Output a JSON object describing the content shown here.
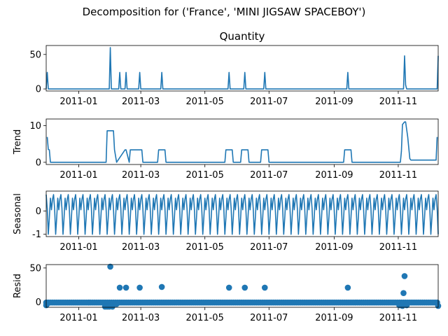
{
  "figure": {
    "suptitle": "Decomposition for ('France', 'MINI JIGSAW SPACEBOY')",
    "line_color": "#1f77b4"
  },
  "chart_data": [
    {
      "type": "line",
      "title": "Quantity",
      "ylabel": "",
      "ylim": [
        -3,
        63
      ],
      "yticks": [
        0,
        50
      ],
      "xlim": [
        "2010-12-01",
        "2011-12-09"
      ],
      "xticks": [
        "2011-01",
        "2011-03",
        "2011-05",
        "2011-07",
        "2011-09",
        "2011-11"
      ],
      "grid": false,
      "x": [
        "2010-12-01",
        "2010-12-02",
        "2010-12-03",
        "2011-01-30",
        "2011-01-31",
        "2011-02-01",
        "2011-02-08",
        "2011-02-09",
        "2011-02-10",
        "2011-02-14",
        "2011-02-15",
        "2011-02-16",
        "2011-02-27",
        "2011-02-28",
        "2011-03-01",
        "2011-03-20",
        "2011-03-21",
        "2011-03-22",
        "2011-05-23",
        "2011-05-24",
        "2011-05-25",
        "2011-06-07",
        "2011-06-08",
        "2011-06-09",
        "2011-06-26",
        "2011-06-27",
        "2011-06-28",
        "2011-09-13",
        "2011-09-14",
        "2011-09-15",
        "2011-11-06",
        "2011-11-07",
        "2011-11-08",
        "2011-11-09",
        "2011-11-10",
        "2011-12-08",
        "2011-12-09"
      ],
      "values": [
        0,
        24,
        0,
        0,
        60,
        0,
        0,
        24,
        0,
        0,
        24,
        0,
        0,
        24,
        0,
        0,
        24,
        0,
        0,
        24,
        0,
        0,
        24,
        0,
        0,
        24,
        0,
        0,
        24,
        0,
        0,
        48,
        6,
        0,
        0,
        0,
        48
      ]
    },
    {
      "type": "line",
      "title": "",
      "ylabel": "Trend",
      "ylim": [
        -0.6,
        11.8
      ],
      "yticks": [
        0,
        10
      ],
      "xlim": [
        "2010-12-01",
        "2011-12-09"
      ],
      "xticks": [
        "2011-01",
        "2011-03",
        "2011-05",
        "2011-07",
        "2011-09",
        "2011-11"
      ],
      "grid": false,
      "x": [
        "2010-12-02",
        "2010-12-03",
        "2010-12-04",
        "2010-12-05",
        "2011-01-27",
        "2011-01-28",
        "2011-02-03",
        "2011-02-04",
        "2011-02-06",
        "2011-02-14",
        "2011-02-15",
        "2011-02-18",
        "2011-02-19",
        "2011-02-24",
        "2011-03-02",
        "2011-03-03",
        "2011-03-17",
        "2011-03-18",
        "2011-03-24",
        "2011-03-25",
        "2011-05-20",
        "2011-05-21",
        "2011-05-27",
        "2011-05-28",
        "2011-06-04",
        "2011-06-05",
        "2011-06-11",
        "2011-06-12",
        "2011-06-23",
        "2011-06-24",
        "2011-06-30",
        "2011-07-01",
        "2011-09-10",
        "2011-09-11",
        "2011-09-17",
        "2011-09-18",
        "2011-11-03",
        "2011-11-04",
        "2011-11-05",
        "2011-11-07",
        "2011-11-08",
        "2011-11-10",
        "2011-11-12",
        "2011-11-13",
        "2011-12-07",
        "2011-12-08"
      ],
      "values": [
        6.9,
        3.5,
        3.4,
        0,
        0,
        8.6,
        8.6,
        3.4,
        0,
        3.4,
        3.4,
        0,
        3.4,
        3.4,
        3.4,
        0,
        0,
        3.4,
        3.4,
        0,
        0,
        3.4,
        3.4,
        0,
        0,
        3.4,
        3.4,
        0,
        0,
        3.4,
        3.4,
        0,
        0,
        3.4,
        3.4,
        0,
        0,
        3,
        10.3,
        11,
        11,
        6.9,
        1,
        0.6,
        0.6,
        6.9
      ]
    },
    {
      "type": "line",
      "title": "",
      "ylabel": "Seasonal",
      "ylim": [
        -1.1,
        0.85
      ],
      "yticks": [
        -1,
        0
      ],
      "xlim": [
        "2010-12-01",
        "2011-12-09"
      ],
      "xticks": [
        "2011-01",
        "2011-03",
        "2011-05",
        "2011-07",
        "2011-09",
        "2011-11"
      ],
      "grid": false,
      "period_days": 7,
      "start_date": "2010-12-01",
      "end_date": "2011-12-09",
      "pattern": [
        0.7,
        0.1,
        -1.0,
        -0.3,
        0.55,
        0.05,
        0.5
      ]
    },
    {
      "type": "scatter",
      "title": "",
      "ylabel": "Resid",
      "ylim": [
        -8,
        55
      ],
      "yticks": [
        0,
        50
      ],
      "xlim": [
        "2010-12-01",
        "2011-12-09"
      ],
      "xticks": [
        "2011-01",
        "2011-03",
        "2011-05",
        "2011-07",
        "2011-09",
        "2011-11"
      ],
      "grid": false,
      "baseline_start": "2010-12-01",
      "baseline_end": "2011-12-09",
      "baseline_step_days": 2,
      "baseline_value": -1,
      "x": [
        "2010-12-01",
        "2010-12-02",
        "2011-01-26",
        "2011-01-28",
        "2011-01-30",
        "2011-01-31",
        "2011-02-02",
        "2011-02-06",
        "2011-02-09",
        "2011-02-15",
        "2011-02-28",
        "2011-03-21",
        "2011-05-24",
        "2011-06-08",
        "2011-06-27",
        "2011-09-14",
        "2011-11-02",
        "2011-11-05",
        "2011-11-06",
        "2011-11-07",
        "2011-11-09",
        "2011-12-09"
      ],
      "values": [
        -5,
        -3,
        -7,
        -7,
        -7,
        52,
        -7,
        -3,
        21,
        21,
        21,
        22,
        21,
        21,
        21,
        21,
        -5,
        -6,
        13,
        38,
        -5,
        -6
      ]
    }
  ]
}
